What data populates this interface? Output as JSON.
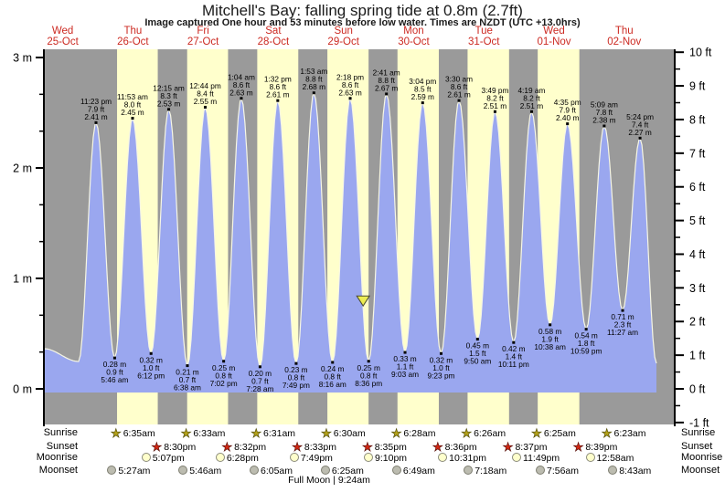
{
  "chart_data": {
    "type": "area",
    "title": "Mitchell's Bay: falling  spring tide at 0.8m (2.7ft)",
    "subtitle": "Image captured One hour and 53 minutes before low water. Times are NZDT (UTC +13.0hrs)",
    "days": [
      {
        "name": "Wed",
        "date": "25-Oct"
      },
      {
        "name": "Thu",
        "date": "26-Oct"
      },
      {
        "name": "Fri",
        "date": "27-Oct"
      },
      {
        "name": "Sat",
        "date": "28-Oct"
      },
      {
        "name": "Sun",
        "date": "29-Oct"
      },
      {
        "name": "Mon",
        "date": "30-Oct"
      },
      {
        "name": "Tue",
        "date": "31-Oct"
      },
      {
        "name": "Wed",
        "date": "01-Nov"
      },
      {
        "name": "Thu",
        "date": "02-Nov"
      }
    ],
    "y_axis_left": {
      "unit": "m",
      "range": [
        0,
        3
      ],
      "ticks": [
        {
          "label": "3 m",
          "value": 3
        },
        {
          "label": "2 m",
          "value": 2
        },
        {
          "label": "1 m",
          "value": 1
        },
        {
          "label": "0 m",
          "value": 0
        }
      ]
    },
    "y_axis_right": {
      "unit": "ft",
      "range": [
        -1,
        10
      ],
      "ticks": [
        {
          "label": "10 ft",
          "value": 10
        },
        {
          "label": "9 ft",
          "value": 9
        },
        {
          "label": "8 ft",
          "value": 8
        },
        {
          "label": "7 ft",
          "value": 7
        },
        {
          "label": "6 ft",
          "value": 6
        },
        {
          "label": "5 ft",
          "value": 5
        },
        {
          "label": "4 ft",
          "value": 4
        },
        {
          "label": "3 ft",
          "value": 3
        },
        {
          "label": "2 ft",
          "value": 2
        },
        {
          "label": "1 ft",
          "value": 1
        },
        {
          "label": "0 ft",
          "value": 0
        },
        {
          "label": "-1 ft",
          "value": -1
        }
      ]
    },
    "tide_events": [
      {
        "type": "high",
        "day": 0,
        "time": "11:23 pm",
        "ft": "7.9 ft",
        "m": "2.41 m"
      },
      {
        "type": "low",
        "day": 1,
        "time": "5:46 am",
        "ft": "0.9 ft",
        "m": "0.28 m"
      },
      {
        "type": "high",
        "day": 1,
        "time": "11:53 am",
        "ft": "8.0 ft",
        "m": "2.45 m"
      },
      {
        "type": "low",
        "day": 1,
        "time": "6:12 pm",
        "ft": "1.0 ft",
        "m": "0.32 m"
      },
      {
        "type": "high",
        "day": 2,
        "time": "12:15 am",
        "ft": "8.3 ft",
        "m": "2.53 m"
      },
      {
        "type": "low",
        "day": 2,
        "time": "6:38 am",
        "ft": "0.7 ft",
        "m": "0.21 m"
      },
      {
        "type": "high",
        "day": 2,
        "time": "12:44 pm",
        "ft": "8.4 ft",
        "m": "2.55 m"
      },
      {
        "type": "low",
        "day": 2,
        "time": "7:02 pm",
        "ft": "0.8 ft",
        "m": "0.25 m"
      },
      {
        "type": "high",
        "day": 3,
        "time": "1:04 am",
        "ft": "8.6 ft",
        "m": "2.63 m"
      },
      {
        "type": "low",
        "day": 3,
        "time": "7:28 am",
        "ft": "0.7 ft",
        "m": "0.20 m"
      },
      {
        "type": "high",
        "day": 3,
        "time": "1:32 pm",
        "ft": "8.6 ft",
        "m": "2.61 m"
      },
      {
        "type": "low",
        "day": 3,
        "time": "7:49 pm",
        "ft": "0.8 ft",
        "m": "0.23 m"
      },
      {
        "type": "high",
        "day": 4,
        "time": "1:53 am",
        "ft": "8.8 ft",
        "m": "2.68 m"
      },
      {
        "type": "low",
        "day": 4,
        "time": "8:16 am",
        "ft": "0.8 ft",
        "m": "0.24 m"
      },
      {
        "type": "high",
        "day": 4,
        "time": "2:18 pm",
        "ft": "8.6 ft",
        "m": "2.63 m"
      },
      {
        "type": "low",
        "day": 4,
        "time": "8:36 pm",
        "ft": "0.8 ft",
        "m": "0.25 m"
      },
      {
        "type": "high",
        "day": 5,
        "time": "2:41 am",
        "ft": "8.8 ft",
        "m": "2.67 m"
      },
      {
        "type": "low",
        "day": 5,
        "time": "9:03 am",
        "ft": "1.1 ft",
        "m": "0.33 m"
      },
      {
        "type": "high",
        "day": 5,
        "time": "3:04 pm",
        "ft": "8.5 ft",
        "m": "2.59 m"
      },
      {
        "type": "low",
        "day": 5,
        "time": "9:23 pm",
        "ft": "1.0 ft",
        "m": "0.32 m"
      },
      {
        "type": "high",
        "day": 6,
        "time": "3:30 am",
        "ft": "8.6 ft",
        "m": "2.61 m"
      },
      {
        "type": "low",
        "day": 6,
        "time": "9:50 am",
        "ft": "1.5 ft",
        "m": "0.45 m"
      },
      {
        "type": "high",
        "day": 6,
        "time": "3:49 pm",
        "ft": "8.2 ft",
        "m": "2.51 m"
      },
      {
        "type": "low",
        "day": 6,
        "time": "10:11 pm",
        "ft": "1.4 ft",
        "m": "0.42 m"
      },
      {
        "type": "high",
        "day": 7,
        "time": "4:19 am",
        "ft": "8.2 ft",
        "m": "2.51 m"
      },
      {
        "type": "low",
        "day": 7,
        "time": "10:38 am",
        "ft": "1.9 ft",
        "m": "0.58 m"
      },
      {
        "type": "high",
        "day": 7,
        "time": "4:35 pm",
        "ft": "7.9 ft",
        "m": "2.40 m"
      },
      {
        "type": "low",
        "day": 7,
        "time": "10:59 pm",
        "ft": "1.8 ft",
        "m": "0.54 m"
      },
      {
        "type": "high",
        "day": 8,
        "time": "5:09 am",
        "ft": "7.8 ft",
        "m": "2.38 m"
      },
      {
        "type": "low",
        "day": 8,
        "time": "11:27 am",
        "ft": "2.3 ft",
        "m": "0.71 m"
      },
      {
        "type": "high",
        "day": 8,
        "time": "5:24 pm",
        "ft": "7.4 ft",
        "m": "2.27 m"
      }
    ],
    "current_marker": {
      "day": 4,
      "time": "6:43 pm",
      "height_m": 0.8
    },
    "sun_moon": {
      "sunrise": [
        {
          "day": 1,
          "time": "6:35am"
        },
        {
          "day": 2,
          "time": "6:33am"
        },
        {
          "day": 3,
          "time": "6:31am"
        },
        {
          "day": 4,
          "time": "6:30am"
        },
        {
          "day": 5,
          "time": "6:28am"
        },
        {
          "day": 6,
          "time": "6:26am"
        },
        {
          "day": 7,
          "time": "6:25am"
        },
        {
          "day": 8,
          "time": "6:23am"
        }
      ],
      "sunset": [
        {
          "day": 1,
          "time": "8:30pm"
        },
        {
          "day": 2,
          "time": "8:32pm"
        },
        {
          "day": 3,
          "time": "8:33pm"
        },
        {
          "day": 4,
          "time": "8:35pm"
        },
        {
          "day": 5,
          "time": "8:36pm"
        },
        {
          "day": 6,
          "time": "8:37pm"
        },
        {
          "day": 7,
          "time": "8:39pm"
        }
      ],
      "moonrise": [
        {
          "day": 1,
          "time": "5:07pm"
        },
        {
          "day": 2,
          "time": "6:28pm"
        },
        {
          "day": 3,
          "time": "7:49pm"
        },
        {
          "day": 4,
          "time": "9:10pm"
        },
        {
          "day": 5,
          "time": "10:31pm"
        },
        {
          "day": 6,
          "time": "11:49pm"
        },
        {
          "day": 8,
          "time": "12:58am"
        }
      ],
      "moonset": [
        {
          "day": 1,
          "time": "5:27am"
        },
        {
          "day": 2,
          "time": "5:46am"
        },
        {
          "day": 3,
          "time": "6:05am"
        },
        {
          "day": 4,
          "time": "6:25am"
        },
        {
          "day": 5,
          "time": "6:49am"
        },
        {
          "day": 6,
          "time": "7:18am"
        },
        {
          "day": 7,
          "time": "7:56am"
        },
        {
          "day": 8,
          "time": "8:43am"
        }
      ]
    },
    "row_labels": [
      "Sunrise",
      "Sunset",
      "Moonrise",
      "Moonset"
    ],
    "footer": {
      "full_moon": "Full Moon | 9:24am"
    },
    "colors": {
      "night": "#9a9a9a",
      "day": "#ffffcc",
      "water": "#9aa7ef",
      "day_label": "#cc2a22",
      "sunrise_star": "#b3a118",
      "sunset_star": "#d42814",
      "moonrise_fill": "#ffffcc",
      "moonset_fill": "#bcbcb0",
      "marker": "#ecec52"
    }
  }
}
